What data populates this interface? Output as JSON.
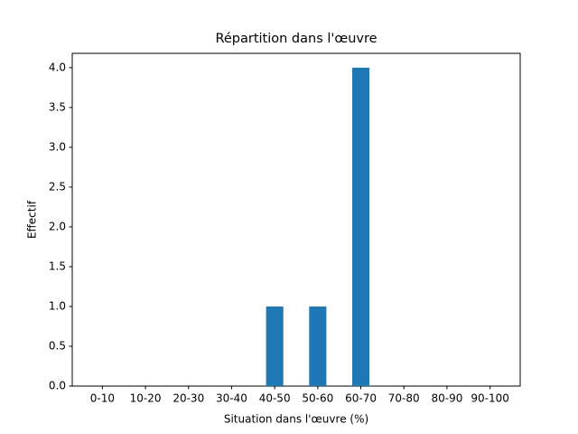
{
  "chart_data": {
    "type": "bar",
    "title": "Répartition dans l'œuvre",
    "x_label": "Situation dans l'œuvre (%)",
    "y_label": "Effectif",
    "categories": [
      "0-10",
      "10-20",
      "20-30",
      "30-40",
      "40-50",
      "50-60",
      "60-70",
      "70-80",
      "80-90",
      "90-100"
    ],
    "values": [
      0,
      0,
      0,
      0,
      1,
      1,
      4,
      0,
      0,
      0
    ],
    "color": "#1f77b4",
    "ylim": [
      0,
      4.18
    ],
    "yticks": [
      {
        "value": 0,
        "label": "0.0"
      },
      0.5,
      {
        "value": 1,
        "label": "1.0"
      },
      1.5,
      {
        "value": 2,
        "label": "2.0"
      },
      2.5,
      {
        "value": 3,
        "label": "3.0"
      },
      3.5,
      {
        "value": 4,
        "label": "4.0"
      }
    ],
    "grid": false
  }
}
